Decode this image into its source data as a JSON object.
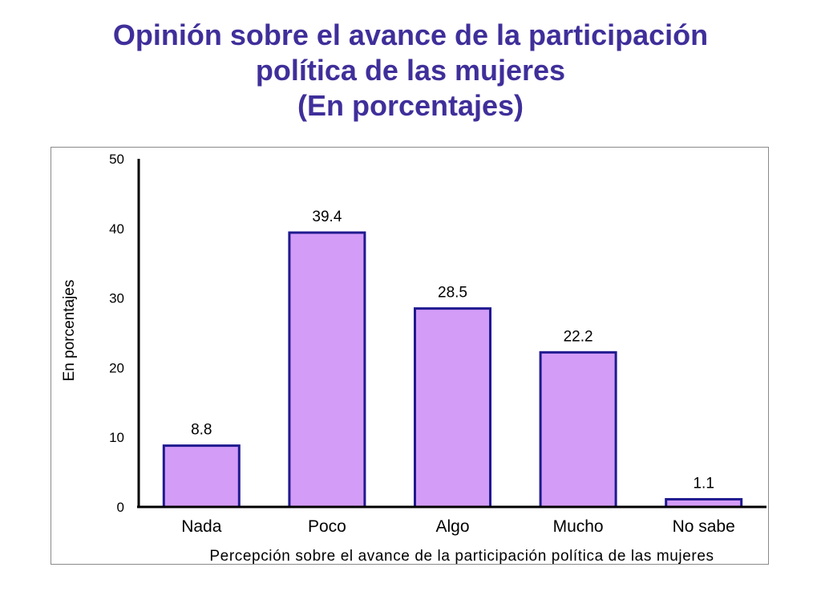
{
  "title": {
    "line1": "Opinión sobre el avance de la participación",
    "line2": "política de las mujeres",
    "line3": "(En porcentajes)"
  },
  "colors": {
    "title": "#3f2f9a",
    "bar_fill": "#d39cf7",
    "bar_stroke": "#1f1a8f",
    "axis": "#000000"
  },
  "chart_data": {
    "type": "bar",
    "categories": [
      "Nada",
      "Poco",
      "Algo",
      "Mucho",
      "No sabe"
    ],
    "values": [
      8.8,
      39.4,
      28.5,
      22.2,
      1.1
    ],
    "data_labels": [
      "8.8",
      "39.4",
      "28.5",
      "22.2",
      "1.1"
    ],
    "xlabel": "Percepción sobre el avance de la participación política de las mujeres",
    "ylabel": "En porcentajes",
    "ylim": [
      0,
      50
    ],
    "yticks": [
      0,
      10,
      20,
      30,
      40,
      50
    ],
    "grid": false,
    "legend": "none"
  }
}
